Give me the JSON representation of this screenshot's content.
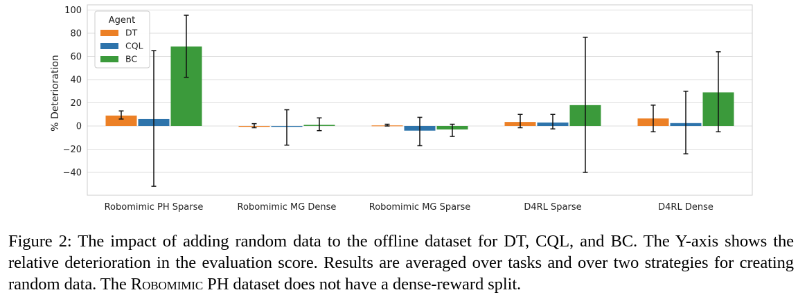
{
  "chart_data": {
    "type": "bar",
    "title": "",
    "xlabel": "",
    "ylabel": "% Deterioration",
    "ylim": [
      -60,
      100
    ],
    "yticks": [
      -40,
      -20,
      0,
      20,
      40,
      60,
      80,
      100
    ],
    "grid": "horizontal",
    "legend": {
      "title": "Agent",
      "placement": "top-left"
    },
    "categories": [
      "Robomimic PH Sparse",
      "Robomimic MG Dense",
      "Robomimic MG Sparse",
      "D4RL Sparse",
      "D4RL Dense"
    ],
    "series": [
      {
        "name": "DT",
        "color": "#ec8026",
        "values": [
          9,
          0,
          0.5,
          3.5,
          6.5
        ],
        "err_low": [
          6,
          -1.5,
          0,
          -1.5,
          -5
        ],
        "err_high": [
          13,
          2,
          1.5,
          10,
          18
        ]
      },
      {
        "name": "CQL",
        "color": "#2e74ab",
        "values": [
          6,
          -0.5,
          -4,
          3,
          2.5
        ],
        "err_low": [
          -52,
          -16.5,
          -17,
          -2.5,
          -24
        ],
        "err_high": [
          65,
          14,
          7.5,
          10,
          30
        ]
      },
      {
        "name": "BC",
        "color": "#3b9a3b",
        "values": [
          68.5,
          1,
          -3,
          18,
          29
        ],
        "err_low": [
          42,
          -4,
          -9,
          -40,
          -5
        ],
        "err_high": [
          95.5,
          7,
          1.5,
          76.5,
          64
        ]
      }
    ]
  },
  "caption": {
    "part1": "Figure 2: The impact of adding random data to the offline dataset for DT, CQL, and BC. The Y-axis shows the relative deterioration in the evaluation score. Results are averaged over tasks and over two strategies for creating random data. The ",
    "smallcaps": "Robomimic",
    "part2": " PH dataset does not have a dense-reward split."
  }
}
